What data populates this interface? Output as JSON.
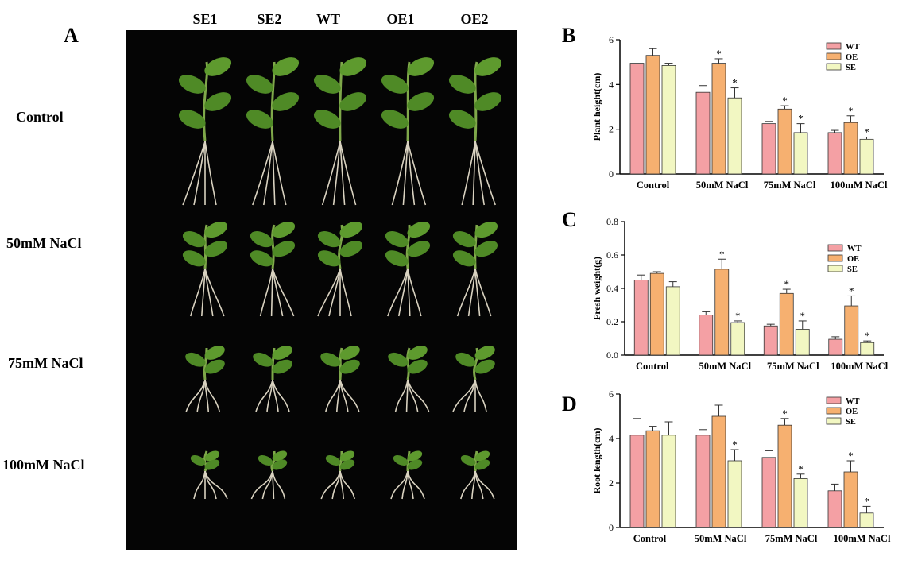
{
  "figure": {
    "panel_a": {
      "letter": "A",
      "columns": [
        "SE1",
        "SE2",
        "WT",
        "OE1",
        "OE2"
      ],
      "rows": [
        "Control",
        "50mM NaCl",
        "75mM NaCl",
        "100mM NaCl"
      ]
    },
    "colors": {
      "WT": "#f4a0a4",
      "OE": "#f6b070",
      "SE": "#f2f7c2",
      "edge": "#333333"
    }
  },
  "chart_data": [
    {
      "panel": "B",
      "type": "bar",
      "ylabel": "Plant height(cm)",
      "xlabel": "",
      "ylim": [
        0,
        6
      ],
      "yticks": [
        "0",
        "2",
        "4",
        "6"
      ],
      "categories": [
        "Control",
        "50mM NaCl",
        "75mM NaCl",
        "100mM NaCl"
      ],
      "series": [
        {
          "name": "WT",
          "values": [
            4.95,
            3.65,
            2.25,
            1.85
          ],
          "errors": [
            0.5,
            0.3,
            0.1,
            0.1
          ],
          "stars": [
            "",
            "",
            "",
            ""
          ]
        },
        {
          "name": "OE",
          "values": [
            5.3,
            4.95,
            2.9,
            2.3
          ],
          "errors": [
            0.3,
            0.2,
            0.15,
            0.3
          ],
          "stars": [
            "",
            "*",
            "*",
            "*"
          ]
        },
        {
          "name": "SE",
          "values": [
            4.85,
            3.4,
            1.85,
            1.55
          ],
          "errors": [
            0.1,
            0.45,
            0.4,
            0.1
          ],
          "stars": [
            "",
            "*",
            "*",
            "*"
          ]
        }
      ],
      "legend": "top-right",
      "grid": false
    },
    {
      "panel": "C",
      "type": "bar",
      "ylabel": "Fresh weight(g)",
      "xlabel": "",
      "ylim": [
        0,
        0.8
      ],
      "yticks": [
        "0.0",
        "0.2",
        "0.4",
        "0.6",
        "0.8"
      ],
      "categories": [
        "Control",
        "50mM NaCl",
        "75mM NaCl",
        "100mM NaCl"
      ],
      "series": [
        {
          "name": "WT",
          "values": [
            0.45,
            0.24,
            0.175,
            0.095
          ],
          "errors": [
            0.03,
            0.02,
            0.01,
            0.015
          ],
          "stars": [
            "",
            "",
            "",
            ""
          ]
        },
        {
          "name": "OE",
          "values": [
            0.49,
            0.515,
            0.37,
            0.295
          ],
          "errors": [
            0.01,
            0.06,
            0.025,
            0.06
          ],
          "stars": [
            "",
            "*",
            "*",
            "*"
          ]
        },
        {
          "name": "SE",
          "values": [
            0.41,
            0.195,
            0.155,
            0.075
          ],
          "errors": [
            0.03,
            0.01,
            0.05,
            0.01
          ],
          "stars": [
            "",
            "*",
            "*",
            "*"
          ]
        }
      ],
      "legend": "top-right",
      "grid": false
    },
    {
      "panel": "D",
      "type": "bar",
      "ylabel": "Root length(cm)",
      "xlabel": "",
      "ylim": [
        0,
        6
      ],
      "yticks": [
        "0",
        "2",
        "4",
        "6"
      ],
      "categories": [
        "Control",
        "50mM NaCl",
        "75mM NaCl",
        "100mM NaCl"
      ],
      "series": [
        {
          "name": "WT",
          "values": [
            4.15,
            4.15,
            3.15,
            1.65
          ],
          "errors": [
            0.75,
            0.25,
            0.3,
            0.3
          ],
          "stars": [
            "",
            "",
            "",
            ""
          ]
        },
        {
          "name": "OE",
          "values": [
            4.35,
            5.0,
            4.6,
            2.5
          ],
          "errors": [
            0.2,
            0.5,
            0.3,
            0.5
          ],
          "stars": [
            "",
            "",
            "*",
            "*"
          ]
        },
        {
          "name": "SE",
          "values": [
            4.15,
            3.0,
            2.2,
            0.65
          ],
          "errors": [
            0.6,
            0.5,
            0.2,
            0.3
          ],
          "stars": [
            "",
            "*",
            "*",
            "*"
          ]
        }
      ],
      "legend": "top-right",
      "grid": false
    }
  ]
}
